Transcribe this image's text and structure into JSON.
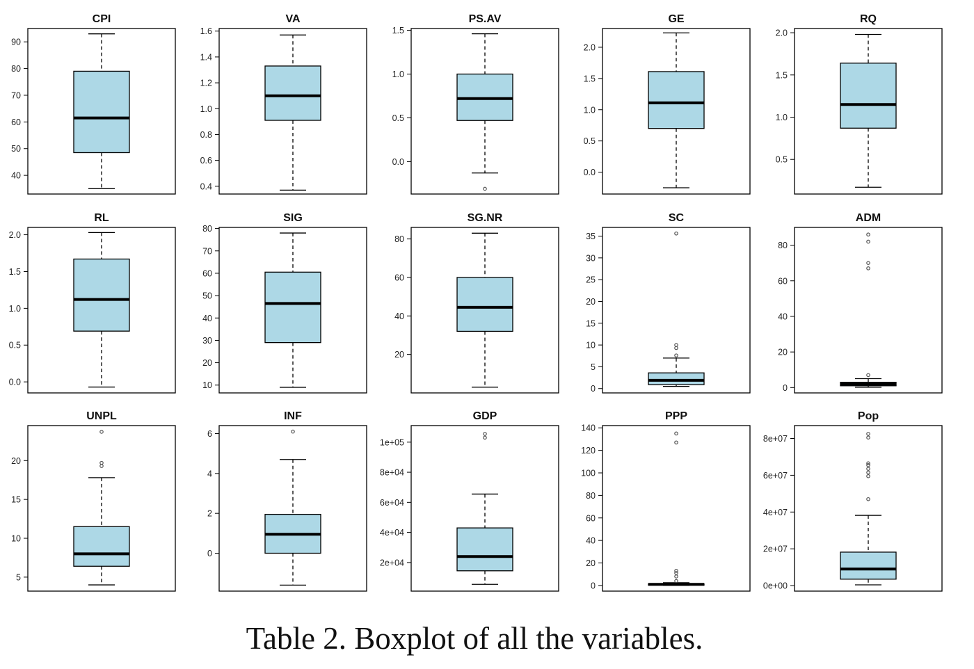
{
  "caption": "Table 2. Boxplot of all the variables.",
  "style": {
    "box_fill": "#add8e6",
    "stroke": "#000000",
    "outlier": "#555555"
  },
  "chart_data": [
    {
      "type": "boxplot",
      "title": "CPI",
      "yticks": [
        {
          "v": 40,
          "l": "40"
        },
        {
          "v": 50,
          "l": "50"
        },
        {
          "v": 60,
          "l": "60"
        },
        {
          "v": 70,
          "l": "70"
        },
        {
          "v": 80,
          "l": "80"
        },
        {
          "v": 90,
          "l": "90"
        }
      ],
      "ylim": [
        33,
        95
      ],
      "min": 35,
      "q1": 48.5,
      "median": 61.5,
      "q3": 79,
      "max": 93,
      "outliers": []
    },
    {
      "type": "boxplot",
      "title": "VA",
      "yticks": [
        {
          "v": 0.4,
          "l": "0.4"
        },
        {
          "v": 0.6,
          "l": "0.6"
        },
        {
          "v": 0.8,
          "l": "0.8"
        },
        {
          "v": 1.0,
          "l": "1.0"
        },
        {
          "v": 1.2,
          "l": "1.2"
        },
        {
          "v": 1.4,
          "l": "1.4"
        },
        {
          "v": 1.6,
          "l": "1.6"
        }
      ],
      "ylim": [
        0.34,
        1.62
      ],
      "min": 0.37,
      "q1": 0.91,
      "median": 1.1,
      "q3": 1.33,
      "max": 1.57,
      "outliers": []
    },
    {
      "type": "boxplot",
      "title": "PS.AV",
      "yticks": [
        {
          "v": 0.0,
          "l": "0.0"
        },
        {
          "v": 0.5,
          "l": "0.5"
        },
        {
          "v": 1.0,
          "l": "1.0"
        },
        {
          "v": 1.5,
          "l": "1.5"
        }
      ],
      "ylim": [
        -0.37,
        1.52
      ],
      "min": -0.13,
      "q1": 0.47,
      "median": 0.72,
      "q3": 1.0,
      "max": 1.46,
      "outliers": [
        -0.31
      ]
    },
    {
      "type": "boxplot",
      "title": "GE",
      "yticks": [
        {
          "v": 0.0,
          "l": "0.0"
        },
        {
          "v": 0.5,
          "l": "0.5"
        },
        {
          "v": 1.0,
          "l": "1.0"
        },
        {
          "v": 1.5,
          "l": "1.5"
        },
        {
          "v": 2.0,
          "l": "2.0"
        }
      ],
      "ylim": [
        -0.35,
        2.3
      ],
      "min": -0.25,
      "q1": 0.7,
      "median": 1.11,
      "q3": 1.61,
      "max": 2.23,
      "outliers": []
    },
    {
      "type": "boxplot",
      "title": "RQ",
      "yticks": [
        {
          "v": 0.5,
          "l": "0.5"
        },
        {
          "v": 1.0,
          "l": "1.0"
        },
        {
          "v": 1.5,
          "l": "1.5"
        },
        {
          "v": 2.0,
          "l": "2.0"
        }
      ],
      "ylim": [
        0.09,
        2.05
      ],
      "min": 0.17,
      "q1": 0.87,
      "median": 1.15,
      "q3": 1.64,
      "max": 1.98,
      "outliers": []
    },
    {
      "type": "boxplot",
      "title": "RL",
      "yticks": [
        {
          "v": 0.0,
          "l": "0.0"
        },
        {
          "v": 0.5,
          "l": "0.5"
        },
        {
          "v": 1.0,
          "l": "1.0"
        },
        {
          "v": 1.5,
          "l": "1.5"
        },
        {
          "v": 2.0,
          "l": "2.0"
        }
      ],
      "ylim": [
        -0.15,
        2.1
      ],
      "min": -0.07,
      "q1": 0.69,
      "median": 1.12,
      "q3": 1.67,
      "max": 2.03,
      "outliers": []
    },
    {
      "type": "boxplot",
      "title": "SIG",
      "yticks": [
        {
          "v": 10,
          "l": "10"
        },
        {
          "v": 20,
          "l": "20"
        },
        {
          "v": 30,
          "l": "30"
        },
        {
          "v": 40,
          "l": "40"
        },
        {
          "v": 50,
          "l": "50"
        },
        {
          "v": 60,
          "l": "60"
        },
        {
          "v": 70,
          "l": "70"
        },
        {
          "v": 80,
          "l": "80"
        }
      ],
      "ylim": [
        6.5,
        80.5
      ],
      "min": 9,
      "q1": 29,
      "median": 46.5,
      "q3": 60.5,
      "max": 78,
      "outliers": []
    },
    {
      "type": "boxplot",
      "title": "SG.NR",
      "yticks": [
        {
          "v": 20,
          "l": "20"
        },
        {
          "v": 40,
          "l": "40"
        },
        {
          "v": 60,
          "l": "60"
        },
        {
          "v": 80,
          "l": "80"
        }
      ],
      "ylim": [
        0,
        86
      ],
      "min": 3,
      "q1": 32,
      "median": 44.5,
      "q3": 60,
      "max": 83,
      "outliers": []
    },
    {
      "type": "boxplot",
      "title": "SC",
      "yticks": [
        {
          "v": 0,
          "l": "0"
        },
        {
          "v": 5,
          "l": "5"
        },
        {
          "v": 10,
          "l": "10"
        },
        {
          "v": 15,
          "l": "15"
        },
        {
          "v": 20,
          "l": "20"
        },
        {
          "v": 25,
          "l": "25"
        },
        {
          "v": 30,
          "l": "30"
        },
        {
          "v": 35,
          "l": "35"
        }
      ],
      "ylim": [
        -1,
        37
      ],
      "min": 0.5,
      "q1": 0.9,
      "median": 1.9,
      "q3": 3.6,
      "max": 7.0,
      "outliers": [
        7.6,
        9.3,
        10.0,
        35.6
      ]
    },
    {
      "type": "boxplot",
      "title": "ADM",
      "yticks": [
        {
          "v": 0,
          "l": "0"
        },
        {
          "v": 20,
          "l": "20"
        },
        {
          "v": 40,
          "l": "40"
        },
        {
          "v": 60,
          "l": "60"
        },
        {
          "v": 80,
          "l": "80"
        }
      ],
      "ylim": [
        -3,
        90
      ],
      "min": 0.2,
      "q1": 1.0,
      "median": 2.0,
      "q3": 3.0,
      "max": 5.0,
      "outliers": [
        7,
        67,
        70,
        82,
        86
      ]
    },
    {
      "type": "boxplot",
      "title": "UNPL",
      "yticks": [
        {
          "v": 5,
          "l": "5"
        },
        {
          "v": 10,
          "l": "10"
        },
        {
          "v": 15,
          "l": "15"
        },
        {
          "v": 20,
          "l": "20"
        }
      ],
      "ylim": [
        3.2,
        24.5
      ],
      "min": 4.0,
      "q1": 6.4,
      "median": 8.0,
      "q3": 11.5,
      "max": 17.8,
      "outliers": [
        19.3,
        19.7,
        23.7
      ]
    },
    {
      "type": "boxplot",
      "title": "INF",
      "yticks": [
        {
          "v": 0,
          "l": "0"
        },
        {
          "v": 2,
          "l": "2"
        },
        {
          "v": 4,
          "l": "4"
        },
        {
          "v": 6,
          "l": "6"
        }
      ],
      "ylim": [
        -1.9,
        6.4
      ],
      "min": -1.6,
      "q1": 0.0,
      "median": 0.95,
      "q3": 1.95,
      "max": 4.7,
      "outliers": [
        6.1
      ]
    },
    {
      "type": "boxplot",
      "title": "GDP",
      "yticks": [
        {
          "v": 20000,
          "l": "2e+04"
        },
        {
          "v": 40000,
          "l": "4e+04"
        },
        {
          "v": 60000,
          "l": "6e+04"
        },
        {
          "v": 80000,
          "l": "8e+04"
        },
        {
          "v": 100000,
          "l": "1e+05"
        }
      ],
      "ylim": [
        1000,
        111000
      ],
      "min": 5500,
      "q1": 14500,
      "median": 24000,
      "q3": 43000,
      "max": 65500,
      "outliers": [
        103000,
        105500
      ]
    },
    {
      "type": "boxplot",
      "title": "PPP",
      "yticks": [
        {
          "v": 0,
          "l": "0"
        },
        {
          "v": 20,
          "l": "20"
        },
        {
          "v": 40,
          "l": "40"
        },
        {
          "v": 60,
          "l": "60"
        },
        {
          "v": 80,
          "l": "80"
        },
        {
          "v": 100,
          "l": "100"
        },
        {
          "v": 120,
          "l": "120"
        },
        {
          "v": 140,
          "l": "140"
        }
      ],
      "ylim": [
        -5,
        142
      ],
      "min": 0.1,
      "q1": 0.5,
      "median": 1.0,
      "q3": 1.5,
      "max": 2.5,
      "outliers": [
        4,
        8,
        11,
        13,
        127,
        135
      ]
    },
    {
      "type": "boxplot",
      "title": "Pop",
      "yticks": [
        {
          "v": 0,
          "l": "0e+00"
        },
        {
          "v": 20000000,
          "l": "2e+07"
        },
        {
          "v": 40000000,
          "l": "4e+07"
        },
        {
          "v": 60000000,
          "l": "6e+07"
        },
        {
          "v": 80000000,
          "l": "8e+07"
        }
      ],
      "ylim": [
        -3000000,
        87000000
      ],
      "min": 400000,
      "q1": 3500000,
      "median": 9000000,
      "q3": 18200000,
      "max": 38200000,
      "outliers": [
        47000000,
        59500000,
        61500000,
        63500000,
        65500000,
        66500000,
        80500000,
        82500000
      ]
    }
  ]
}
